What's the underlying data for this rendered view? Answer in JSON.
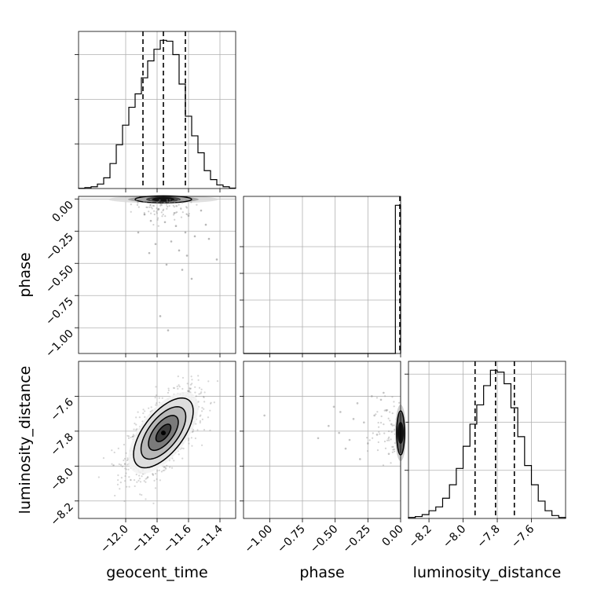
{
  "chart_data": {
    "type": "corner",
    "parameters": [
      "geocent_time",
      "phase",
      "luminosity_distance"
    ],
    "grid": true,
    "marginals": [
      {
        "parameter": "geocent_time",
        "type": "histogram",
        "bin_edges": [
          -12.3,
          -12.26,
          -12.22,
          -12.18,
          -12.14,
          -12.1,
          -12.06,
          -12.02,
          -11.98,
          -11.94,
          -11.9,
          -11.86,
          -11.82,
          -11.78,
          -11.74,
          -11.7,
          -11.66,
          -11.62,
          -11.58,
          -11.54,
          -11.5,
          -11.46,
          -11.42,
          -11.38,
          -11.34,
          -11.3
        ],
        "counts": [
          0.2,
          1,
          2,
          5,
          12,
          28,
          49,
          71,
          91,
          106,
          124,
          143,
          156,
          166,
          165,
          150,
          117,
          81,
          59,
          40,
          20,
          10,
          4,
          2,
          0.5
        ],
        "quantiles": [
          -11.89,
          -11.76,
          -11.62
        ]
      },
      {
        "parameter": "phase",
        "type": "histogram",
        "bin_edges": [
          -1.2,
          -0.04,
          0.0
        ],
        "counts": [
          0,
          176
        ],
        "quantiles": [
          0.0
        ]
      },
      {
        "parameter": "luminosity_distance",
        "type": "histogram",
        "bin_edges": [
          -8.32,
          -8.28,
          -8.24,
          -8.2,
          -8.16,
          -8.12,
          -8.08,
          -8.04,
          -8.0,
          -7.96,
          -7.92,
          -7.88,
          -7.84,
          -7.8,
          -7.76,
          -7.72,
          -7.68,
          -7.64,
          -7.6,
          -7.56,
          -7.52,
          -7.48,
          -7.44,
          -7.4
        ],
        "counts": [
          1,
          2,
          4,
          8,
          12,
          21,
          35,
          52,
          75,
          98,
          118,
          138,
          154,
          152,
          140,
          115,
          85,
          55,
          35,
          18,
          8,
          3,
          1
        ],
        "quantiles": [
          -7.93,
          -7.81,
          -7.7
        ]
      }
    ],
    "pairs": [
      {
        "x": "geocent_time",
        "y": "phase",
        "x_range": [
          -12.3,
          -11.3
        ],
        "y_range": [
          -1.2,
          0.02
        ],
        "density_center": [
          -11.76,
          -0.003
        ],
        "outlier_points": [
          [
            -11.42,
            -0.47
          ],
          [
            -11.78,
            -0.91
          ],
          [
            -11.73,
            -1.02
          ],
          [
            -11.58,
            -0.62
          ],
          [
            -11.64,
            -0.55
          ],
          [
            -11.6,
            -0.13
          ],
          [
            -11.68,
            -0.21
          ],
          [
            -11.84,
            -0.17
          ],
          [
            -11.49,
            -0.2
          ],
          [
            -11.81,
            -0.35
          ],
          [
            -11.52,
            -0.09
          ],
          [
            -11.71,
            -0.33
          ],
          [
            -11.62,
            -0.26
          ],
          [
            -11.88,
            -0.12
          ],
          [
            -11.66,
            -0.4
          ],
          [
            -11.75,
            -0.18
          ],
          [
            -11.56,
            -0.29
          ],
          [
            -11.79,
            -0.08
          ],
          [
            -11.69,
            -0.11
          ],
          [
            -11.61,
            -0.44
          ],
          [
            -11.92,
            -0.26
          ],
          [
            -11.47,
            -0.31
          ],
          [
            -11.74,
            -0.51
          ],
          [
            -11.85,
            -0.42
          ]
        ]
      },
      {
        "x": "geocent_time",
        "y": "luminosity_distance",
        "x_range": [
          -12.3,
          -11.3
        ],
        "y_range": [
          -8.3,
          -7.4
        ],
        "mean": [
          -11.76,
          -7.81
        ],
        "sd": [
          0.095,
          0.1
        ],
        "correlation": 0.62,
        "contour_sigma_levels": [
          0.5,
          1.0,
          1.5,
          2.0
        ]
      },
      {
        "x": "phase",
        "y": "luminosity_distance",
        "x_range": [
          -1.2,
          0.0
        ],
        "y_range": [
          -8.3,
          -7.4
        ],
        "density_center": [
          -0.003,
          -7.81
        ],
        "outlier_points": [
          [
            -1.04,
            -7.71
          ],
          [
            -0.46,
            -7.69
          ],
          [
            -0.33,
            -7.64
          ],
          [
            -0.28,
            -7.75
          ],
          [
            -0.22,
            -7.6
          ],
          [
            -0.55,
            -7.77
          ],
          [
            -0.63,
            -7.84
          ],
          [
            -0.42,
            -7.9
          ],
          [
            -0.18,
            -7.82
          ],
          [
            -0.11,
            -7.68
          ],
          [
            -0.36,
            -7.73
          ],
          [
            -0.25,
            -7.87
          ],
          [
            -0.15,
            -7.62
          ],
          [
            -0.51,
            -7.66
          ],
          [
            -0.09,
            -7.93
          ],
          [
            -0.31,
            -7.96
          ],
          [
            -0.47,
            -7.81
          ],
          [
            -0.2,
            -7.71
          ],
          [
            -0.13,
            -7.58
          ],
          [
            -0.39,
            -7.85
          ],
          [
            -0.07,
            -7.76
          ]
        ]
      }
    ],
    "axes": {
      "geocent_time": {
        "range": [
          -12.3,
          -11.3
        ],
        "ticks": [
          -12.0,
          -11.8,
          -11.6,
          -11.4
        ],
        "tick_labels": [
          "−12.0",
          "−11.8",
          "−11.6",
          "−11.4"
        ]
      },
      "phase": {
        "range": [
          -1.2,
          0.02
        ],
        "ticks": [
          0.0,
          -0.25,
          -0.5,
          -0.75,
          -1.0
        ],
        "tick_labels": [
          "0.00",
          "−0.25",
          "−0.50",
          "−0.75",
          "−1.00"
        ]
      },
      "phase_x": {
        "range": [
          -1.2,
          0.0
        ],
        "ticks": [
          -1.0,
          -0.75,
          -0.5,
          -0.25,
          0.0
        ],
        "tick_labels": [
          "−1.00",
          "−0.75",
          "−0.50",
          "−0.25",
          "0.00"
        ]
      },
      "luminosity_distance": {
        "range": [
          -8.3,
          -7.4
        ],
        "ticks": [
          -7.6,
          -7.8,
          -8.0,
          -8.2
        ],
        "tick_labels": [
          "−7.6",
          "−7.8",
          "−8.0",
          "−8.2"
        ]
      },
      "luminosity_distance_x": {
        "range": [
          -8.32,
          -7.4
        ],
        "ticks": [
          -8.2,
          -8.0,
          -7.8,
          -7.6
        ],
        "tick_labels": [
          "−8.2",
          "−8.0",
          "−7.8",
          "−7.6"
        ]
      }
    },
    "labels": {
      "x": [
        "geocent_time",
        "phase",
        "luminosity_distance"
      ],
      "y": [
        "phase",
        "luminosity_distance"
      ]
    }
  }
}
